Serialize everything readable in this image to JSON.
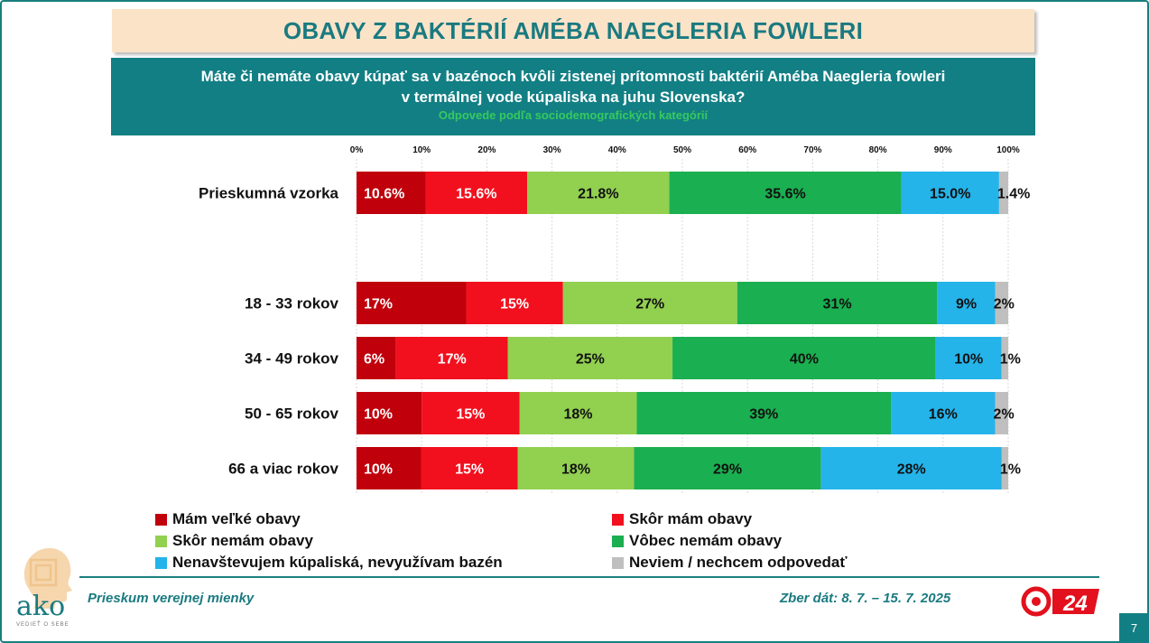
{
  "title": "OBAVY Z BAKTÉRIÍ AMÉBA NAEGLERIA FOWLERI",
  "question_line1": "Máte či nemáte obavy kúpať sa v bazénoch kvôli zistenej prítomnosti baktérií Améba Naegleria fowleri",
  "question_line2": "v termálnej vode kúpaliska na juhu Slovenska?",
  "subtitle": "Odpovede podľa sociodemografických kategórií",
  "chart_data": {
    "type": "bar",
    "orientation": "horizontal",
    "stacked": true,
    "xlim": [
      0,
      100
    ],
    "x_ticks": [
      "0%",
      "10%",
      "20%",
      "30%",
      "40%",
      "50%",
      "60%",
      "70%",
      "80%",
      "90%",
      "100%"
    ],
    "grid": true,
    "legend_position": "bottom",
    "categories": [
      "Prieskumná vzorka",
      "18 - 33 rokov",
      "34 - 49 rokov",
      "50 - 65 rokov",
      "66 a viac rokov"
    ],
    "series": [
      {
        "name": "Mám veľké obavy",
        "color": "#c0000b",
        "values": [
          10.6,
          17,
          6,
          10,
          10
        ],
        "labels": [
          "10.6%",
          "17%",
          "6%",
          "10%",
          "10%"
        ]
      },
      {
        "name": "Skôr mám obavy",
        "color": "#f2101e",
        "values": [
          15.6,
          15,
          17,
          15,
          15
        ],
        "labels": [
          "15.6%",
          "15%",
          "17%",
          "15%",
          "15%"
        ]
      },
      {
        "name": "Skôr nemám obavy",
        "color": "#92d050",
        "values": [
          21.8,
          27,
          25,
          18,
          18
        ],
        "labels": [
          "21.8%",
          "27%",
          "25%",
          "18%",
          "18%"
        ]
      },
      {
        "name": "Vôbec nemám obavy",
        "color": "#1aaf50",
        "values": [
          35.6,
          31,
          40,
          39,
          29
        ],
        "labels": [
          "35.6%",
          "31%",
          "40%",
          "39%",
          "29%"
        ]
      },
      {
        "name": "Nenavštevujem kúpaliská, nevyužívam bazén",
        "color": "#24b4ea",
        "values": [
          15.0,
          9,
          10,
          16,
          28
        ],
        "labels": [
          "15.0%",
          "9%",
          "10%",
          "16%",
          "28%"
        ]
      },
      {
        "name": "Neviem / nechcem odpovedať",
        "color": "#bfbfbf",
        "values": [
          1.4,
          2,
          1,
          2,
          1
        ],
        "labels": [
          "1.4%",
          "2%",
          "1%",
          "2%",
          "1%"
        ]
      }
    ]
  },
  "footer": {
    "left": "Prieskum verejnej mienky",
    "right": "Zber dát: 8. 7. – 15. 7. 2025",
    "page_number": "7"
  },
  "logos": {
    "ako_text": "ako",
    "ako_tagline": "VEDIEŤ O SEBE",
    "tv_text": "24"
  }
}
